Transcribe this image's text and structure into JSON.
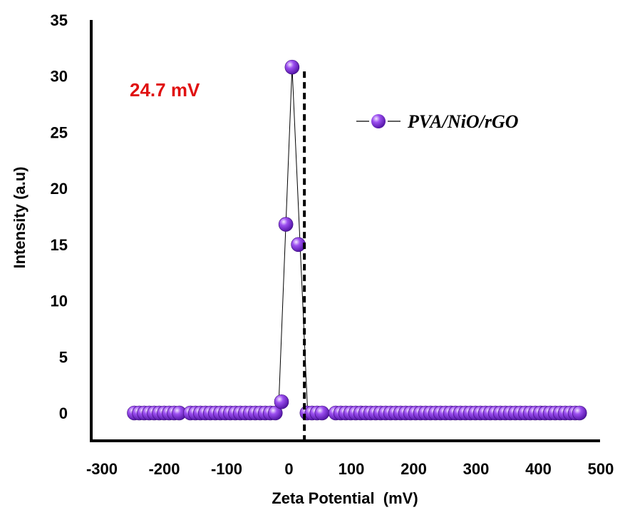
{
  "chart_data": {
    "type": "scatter",
    "xlabel": "Zeta Potential  (mV)",
    "ylabel": "Intensity (a.u)",
    "xlim": [
      -300,
      500
    ],
    "ylim": [
      0,
      35
    ],
    "xticks": [
      -300,
      -200,
      -100,
      0,
      100,
      200,
      300,
      400,
      500
    ],
    "yticks": [
      0,
      5,
      10,
      15,
      20,
      25,
      30,
      35
    ],
    "grid": false,
    "legend_position": "top-right",
    "series": [
      {
        "name": "PVA/NiO/rGO",
        "color": "#7a2bd6",
        "points": [
          [
            -248,
            0
          ],
          [
            -240,
            0
          ],
          [
            -232,
            0
          ],
          [
            -224,
            0
          ],
          [
            -216,
            0
          ],
          [
            -208,
            0
          ],
          [
            -200,
            0
          ],
          [
            -192,
            0
          ],
          [
            -184,
            0
          ],
          [
            -176,
            0
          ],
          [
            -158,
            0
          ],
          [
            -150,
            0
          ],
          [
            -142,
            0
          ],
          [
            -134,
            0
          ],
          [
            -126,
            0
          ],
          [
            -118,
            0
          ],
          [
            -110,
            0
          ],
          [
            -102,
            0
          ],
          [
            -94,
            0
          ],
          [
            -86,
            0
          ],
          [
            -78,
            0
          ],
          [
            -70,
            0
          ],
          [
            -62,
            0
          ],
          [
            -54,
            0
          ],
          [
            -46,
            0
          ],
          [
            -38,
            0
          ],
          [
            -30,
            0
          ],
          [
            -22,
            0
          ],
          [
            -12,
            1
          ],
          [
            -5,
            16.8
          ],
          [
            5,
            30.8
          ],
          [
            15,
            15
          ],
          [
            29,
            0
          ],
          [
            37,
            0
          ],
          [
            45,
            0
          ],
          [
            53,
            0
          ],
          [
            75,
            0
          ],
          [
            83,
            0
          ],
          [
            91,
            0
          ],
          [
            99,
            0
          ],
          [
            107,
            0
          ],
          [
            115,
            0
          ],
          [
            123,
            0
          ],
          [
            131,
            0
          ],
          [
            139,
            0
          ],
          [
            147,
            0
          ],
          [
            155,
            0
          ],
          [
            163,
            0
          ],
          [
            171,
            0
          ],
          [
            179,
            0
          ],
          [
            187,
            0
          ],
          [
            195,
            0
          ],
          [
            203,
            0
          ],
          [
            211,
            0
          ],
          [
            219,
            0
          ],
          [
            227,
            0
          ],
          [
            235,
            0
          ],
          [
            243,
            0
          ],
          [
            251,
            0
          ],
          [
            259,
            0
          ],
          [
            267,
            0
          ],
          [
            275,
            0
          ],
          [
            283,
            0
          ],
          [
            291,
            0
          ],
          [
            299,
            0
          ],
          [
            307,
            0
          ],
          [
            315,
            0
          ],
          [
            323,
            0
          ],
          [
            331,
            0
          ],
          [
            339,
            0
          ],
          [
            347,
            0
          ],
          [
            355,
            0
          ],
          [
            363,
            0
          ],
          [
            371,
            0
          ],
          [
            379,
            0
          ],
          [
            387,
            0
          ],
          [
            395,
            0
          ],
          [
            403,
            0
          ],
          [
            411,
            0
          ],
          [
            419,
            0
          ],
          [
            427,
            0
          ],
          [
            435,
            0
          ],
          [
            443,
            0
          ],
          [
            451,
            0
          ],
          [
            459,
            0
          ],
          [
            466,
            0
          ]
        ],
        "peak_lines": [
          [
            [
              -17,
              0
            ],
            [
              5,
              30.8
            ],
            [
              30,
              0
            ]
          ]
        ]
      }
    ],
    "marker_line": {
      "x": 24.7,
      "style": "dashed",
      "color": "#000000"
    },
    "annotations": [
      {
        "text": "24.7 mV",
        "color": "#e01010"
      }
    ]
  }
}
